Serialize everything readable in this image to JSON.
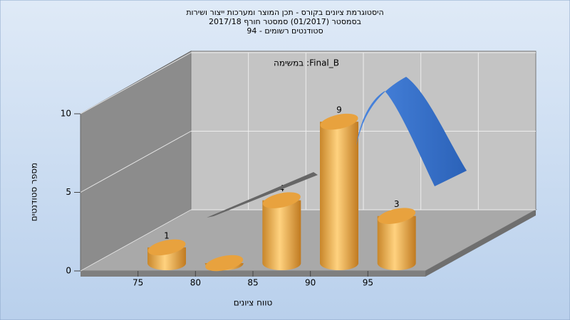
{
  "chart_data": {
    "type": "histogram",
    "title": [
      "היסטוגרמת ציונים בקורס - תכן המוצר ומערכות ייצור ושירות",
      "בסמסטר  (01/2017)  סמסטר חורף 2017/18",
      "סטודנטים רשומים - 94"
    ],
    "annotation": "במשימה :Final_B",
    "x_label": "טווח ציונים",
    "y_label": "מספר סטודנטים",
    "bins": [
      75,
      80,
      85,
      90,
      95,
      100
    ],
    "counts": [
      1,
      0,
      4,
      9,
      3
    ],
    "value_labels": [
      "1",
      null,
      "4",
      "9",
      "3"
    ],
    "color": "#e8a23e",
    "xlim": [
      70,
      100
    ],
    "xticks": [
      75,
      80,
      85,
      90,
      95
    ],
    "ylim": [
      0,
      10
    ],
    "yticks": [
      0,
      5,
      10
    ],
    "grid": true
  }
}
